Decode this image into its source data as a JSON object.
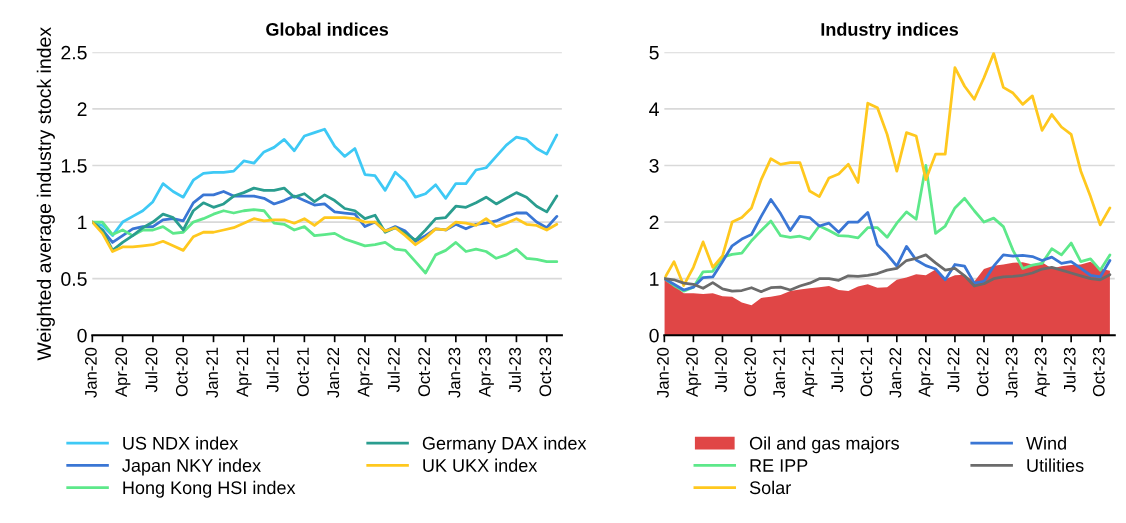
{
  "chart_data": [
    {
      "type": "line",
      "title": "Global indices",
      "ylabel": "Weighted average industry stock index",
      "categories": [
        "Jan-20",
        null,
        null,
        "Apr-20",
        null,
        null,
        "Jul-20",
        null,
        null,
        "Oct-20",
        null,
        null,
        "Jan-21",
        null,
        null,
        "Apr-21",
        null,
        null,
        "Jul-21",
        null,
        null,
        "Oct-21",
        null,
        null,
        "Jan-22",
        null,
        null,
        "Apr-22",
        null,
        null,
        "Jul-22",
        null,
        null,
        "Oct-22",
        null,
        null,
        "Jan-23",
        null,
        null,
        "Apr-23",
        null,
        null,
        "Jul-23",
        null,
        null,
        "Oct-23",
        null
      ],
      "ylim": [
        0,
        2.5
      ],
      "yticks": [
        0,
        0.5,
        1,
        1.5,
        2,
        2.5
      ],
      "grid": "y",
      "legend": "bottom",
      "series": [
        {
          "name": "US NDX index",
          "color": "#3ec9f5",
          "values": [
            1.0,
            0.97,
            0.88,
            1.0,
            1.05,
            1.1,
            1.18,
            1.34,
            1.27,
            1.22,
            1.37,
            1.43,
            1.44,
            1.44,
            1.45,
            1.54,
            1.52,
            1.62,
            1.66,
            1.73,
            1.63,
            1.76,
            1.79,
            1.82,
            1.67,
            1.58,
            1.65,
            1.42,
            1.41,
            1.28,
            1.44,
            1.36,
            1.22,
            1.25,
            1.33,
            1.21,
            1.34,
            1.34,
            1.46,
            1.48,
            1.58,
            1.68,
            1.75,
            1.73,
            1.65,
            1.6,
            1.77
          ]
        },
        {
          "name": "Japan NKY index",
          "color": "#3a76d4",
          "values": [
            1.0,
            0.93,
            0.82,
            0.88,
            0.94,
            0.96,
            0.96,
            1.02,
            1.03,
            1.01,
            1.17,
            1.24,
            1.24,
            1.27,
            1.23,
            1.23,
            1.23,
            1.21,
            1.16,
            1.19,
            1.23,
            1.19,
            1.15,
            1.16,
            1.09,
            1.08,
            1.07,
            0.96,
            1.0,
            0.92,
            0.96,
            0.92,
            0.83,
            0.88,
            0.94,
            0.93,
            0.98,
            0.94,
            0.98,
            0.99,
            1.01,
            1.05,
            1.08,
            1.08,
            1.0,
            0.95,
            1.05
          ]
        },
        {
          "name": "Hong Kong HSI index",
          "color": "#5de88a",
          "values": [
            1.0,
            1.0,
            0.89,
            0.93,
            0.88,
            0.93,
            0.93,
            0.96,
            0.9,
            0.91,
            1.0,
            1.03,
            1.07,
            1.1,
            1.08,
            1.1,
            1.11,
            1.1,
            0.99,
            0.98,
            0.93,
            0.96,
            0.88,
            0.89,
            0.9,
            0.85,
            0.82,
            0.79,
            0.8,
            0.82,
            0.76,
            0.75,
            0.65,
            0.55,
            0.71,
            0.75,
            0.82,
            0.74,
            0.76,
            0.74,
            0.68,
            0.71,
            0.76,
            0.68,
            0.67,
            0.65,
            0.65
          ]
        },
        {
          "name": "Germany DAX index",
          "color": "#2a9d8f",
          "values": [
            1.0,
            0.93,
            0.75,
            0.82,
            0.88,
            0.95,
            1.0,
            1.07,
            1.04,
            0.93,
            1.1,
            1.17,
            1.13,
            1.16,
            1.23,
            1.26,
            1.3,
            1.28,
            1.28,
            1.3,
            1.22,
            1.25,
            1.18,
            1.24,
            1.19,
            1.12,
            1.1,
            1.03,
            1.06,
            0.91,
            0.95,
            0.9,
            0.84,
            0.93,
            1.03,
            1.04,
            1.14,
            1.13,
            1.17,
            1.22,
            1.16,
            1.21,
            1.26,
            1.22,
            1.14,
            1.09,
            1.23
          ]
        },
        {
          "name": "UK UKX index",
          "color": "#ffc81e",
          "values": [
            1.0,
            0.9,
            0.74,
            0.78,
            0.78,
            0.79,
            0.8,
            0.83,
            0.79,
            0.75,
            0.87,
            0.91,
            0.91,
            0.93,
            0.95,
            0.99,
            1.03,
            1.01,
            1.02,
            1.02,
            0.99,
            1.03,
            0.97,
            1.04,
            1.04,
            1.04,
            1.03,
            1.0,
            1.0,
            0.92,
            0.95,
            0.88,
            0.8,
            0.86,
            0.94,
            0.93,
            1.0,
            0.99,
            0.97,
            1.03,
            0.96,
            0.99,
            1.03,
            0.98,
            0.97,
            0.93,
            0.98
          ]
        }
      ]
    },
    {
      "type": "line",
      "title": "Industry indices",
      "categories": [
        "Jan-20",
        null,
        null,
        "Apr-20",
        null,
        null,
        "Jul-20",
        null,
        null,
        "Oct-20",
        null,
        null,
        "Jan-21",
        null,
        null,
        "Apr-21",
        null,
        null,
        "Jul-21",
        null,
        null,
        "Oct-21",
        null,
        null,
        "Jan-22",
        null,
        null,
        "Apr-22",
        null,
        null,
        "Jul-22",
        null,
        null,
        "Oct-22",
        null,
        null,
        "Jan-23",
        null,
        null,
        "Apr-23",
        null,
        null,
        "Jul-23",
        null,
        null,
        "Oct-23",
        null
      ],
      "ylim": [
        0,
        5
      ],
      "yticks": [
        0,
        1,
        2,
        3,
        4,
        5
      ],
      "grid": "y",
      "legend": "bottom",
      "series": [
        {
          "name": "Oil and gas majors",
          "type": "area",
          "color": "#e04646",
          "values": [
            1.0,
            0.88,
            0.74,
            0.74,
            0.73,
            0.74,
            0.69,
            0.68,
            0.58,
            0.53,
            0.66,
            0.68,
            0.71,
            0.78,
            0.81,
            0.83,
            0.85,
            0.87,
            0.8,
            0.78,
            0.86,
            0.9,
            0.84,
            0.85,
            0.98,
            1.02,
            1.08,
            1.06,
            1.16,
            0.99,
            1.06,
            1.07,
            0.95,
            1.17,
            1.23,
            1.25,
            1.28,
            1.29,
            1.25,
            1.29,
            1.18,
            1.22,
            1.24,
            1.25,
            1.3,
            1.18,
            1.14
          ]
        },
        {
          "name": "RE IPP",
          "color": "#5de88a",
          "values": [
            1.0,
            0.88,
            0.78,
            0.85,
            1.12,
            1.13,
            1.38,
            1.43,
            1.45,
            1.67,
            1.85,
            2.02,
            1.76,
            1.73,
            1.75,
            1.7,
            1.93,
            1.85,
            1.76,
            1.75,
            1.72,
            1.9,
            1.9,
            1.73,
            1.98,
            2.18,
            2.05,
            3.0,
            1.8,
            1.93,
            2.25,
            2.42,
            2.2,
            2.0,
            2.07,
            1.92,
            1.5,
            1.18,
            1.24,
            1.27,
            1.53,
            1.42,
            1.63,
            1.3,
            1.35,
            1.15,
            1.42
          ]
        },
        {
          "name": "Solar",
          "color": "#ffc81e",
          "values": [
            1.0,
            1.3,
            0.88,
            1.2,
            1.65,
            1.2,
            1.4,
            2.0,
            2.08,
            2.25,
            2.75,
            3.12,
            3.02,
            3.05,
            3.05,
            2.55,
            2.45,
            2.78,
            2.85,
            3.02,
            2.7,
            4.1,
            4.02,
            3.55,
            2.9,
            3.58,
            3.52,
            2.75,
            3.2,
            3.2,
            4.73,
            4.4,
            4.17,
            4.55,
            4.98,
            4.38,
            4.28,
            4.08,
            4.23,
            3.62,
            3.9,
            3.68,
            3.55,
            2.9,
            2.45,
            1.95,
            2.25
          ]
        },
        {
          "name": "Wind",
          "color": "#3a76d4",
          "values": [
            1.0,
            0.9,
            0.8,
            0.85,
            1.02,
            1.03,
            1.3,
            1.58,
            1.7,
            1.78,
            2.1,
            2.4,
            2.15,
            1.85,
            2.1,
            2.08,
            1.93,
            1.98,
            1.82,
            2.0,
            2.0,
            2.17,
            1.6,
            1.43,
            1.22,
            1.57,
            1.33,
            1.23,
            1.17,
            0.98,
            1.25,
            1.22,
            0.92,
            0.95,
            1.22,
            1.42,
            1.4,
            1.41,
            1.39,
            1.32,
            1.38,
            1.27,
            1.3,
            1.18,
            1.06,
            1.03,
            1.32
          ]
        },
        {
          "name": "Utilities",
          "color": "#6b6b6b",
          "values": [
            1.0,
            0.98,
            0.92,
            0.9,
            0.83,
            0.93,
            0.82,
            0.78,
            0.79,
            0.84,
            0.77,
            0.84,
            0.85,
            0.8,
            0.87,
            0.92,
            1.0,
            1.0,
            0.97,
            1.05,
            1.04,
            1.06,
            1.09,
            1.15,
            1.18,
            1.32,
            1.36,
            1.42,
            1.28,
            1.15,
            1.18,
            1.05,
            0.87,
            0.91,
            1.0,
            1.03,
            1.04,
            1.06,
            1.1,
            1.17,
            1.2,
            1.15,
            1.1,
            1.05,
            1.0,
            0.98,
            1.07
          ]
        }
      ]
    }
  ]
}
